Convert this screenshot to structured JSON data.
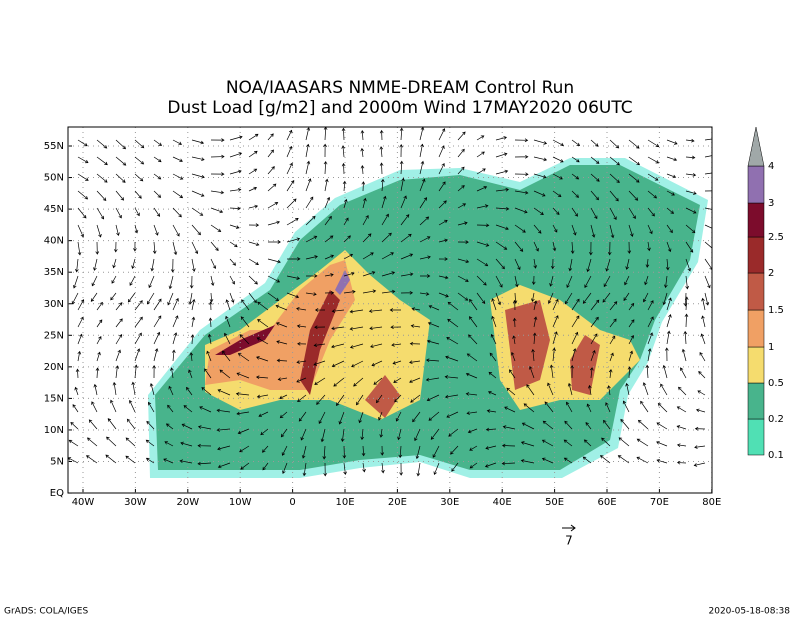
{
  "header": {
    "title_lines": [
      "NOA/IAASARS NMME-DREAM Control Run",
      "Dust Load [g/m2] and 2000m Wind 17MAY2020 06UTC"
    ]
  },
  "map": {
    "lat_labels": [
      "55N",
      "50N",
      "45N",
      "40N",
      "35N",
      "30N",
      "25N",
      "20N",
      "15N",
      "10N",
      "5N",
      "EQ"
    ],
    "lon_labels": [
      "40W",
      "30W",
      "20W",
      "10W",
      "0",
      "10E",
      "20E",
      "30E",
      "40E",
      "50E",
      "60E",
      "70E",
      "80E"
    ]
  },
  "colorbar": {
    "levels": [
      0.1,
      0.2,
      0.5,
      1,
      1.5,
      2,
      2.5,
      3,
      4
    ],
    "colors": [
      "#a0f0e6",
      "#50e0b4",
      "#48b48c",
      "#f5dc6e",
      "#f0a064",
      "#c05a46",
      "#9a2a2a",
      "#7c0c2c",
      "#9070b0",
      "#a0a8a8"
    ]
  },
  "wind_reference": {
    "label": "7"
  },
  "footer": {
    "left": "GrADS: COLA/IGES",
    "right": "2020-05-18-08:38"
  }
}
